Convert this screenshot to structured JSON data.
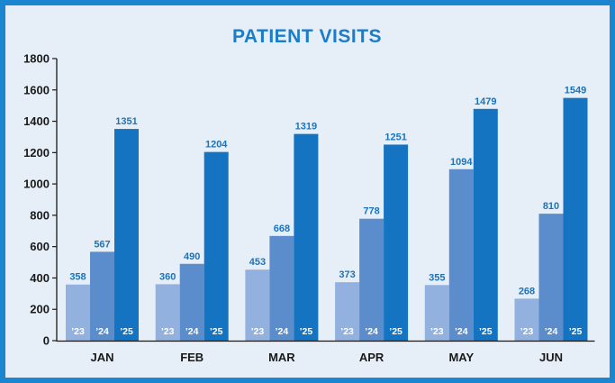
{
  "colors": {
    "background_border": "#1b86cf",
    "panel": "#e6eef7",
    "title": "#1b7cc8",
    "value_label": "#1b74bb",
    "axis": "#1a1a1a"
  },
  "chart_data": {
    "type": "bar",
    "title": "PATIENT VISITS",
    "xlabel": "",
    "ylabel": "",
    "ylim": [
      0,
      1800
    ],
    "yticks": [
      0,
      200,
      400,
      600,
      800,
      1000,
      1200,
      1400,
      1600,
      1800
    ],
    "categories": [
      "JAN",
      "FEB",
      "MAR",
      "APR",
      "MAY",
      "JUN"
    ],
    "series": [
      {
        "name": "’23",
        "color": "#93b1df",
        "values": [
          358,
          360,
          453,
          373,
          355,
          268
        ]
      },
      {
        "name": "’24",
        "color": "#5b8ccb",
        "values": [
          567,
          490,
          668,
          778,
          1094,
          810
        ]
      },
      {
        "name": "’25",
        "color": "#1574c2",
        "values": [
          1351,
          1204,
          1319,
          1251,
          1479,
          1549
        ]
      }
    ],
    "grid": false,
    "legend": "none (series labels printed inside bars)"
  }
}
